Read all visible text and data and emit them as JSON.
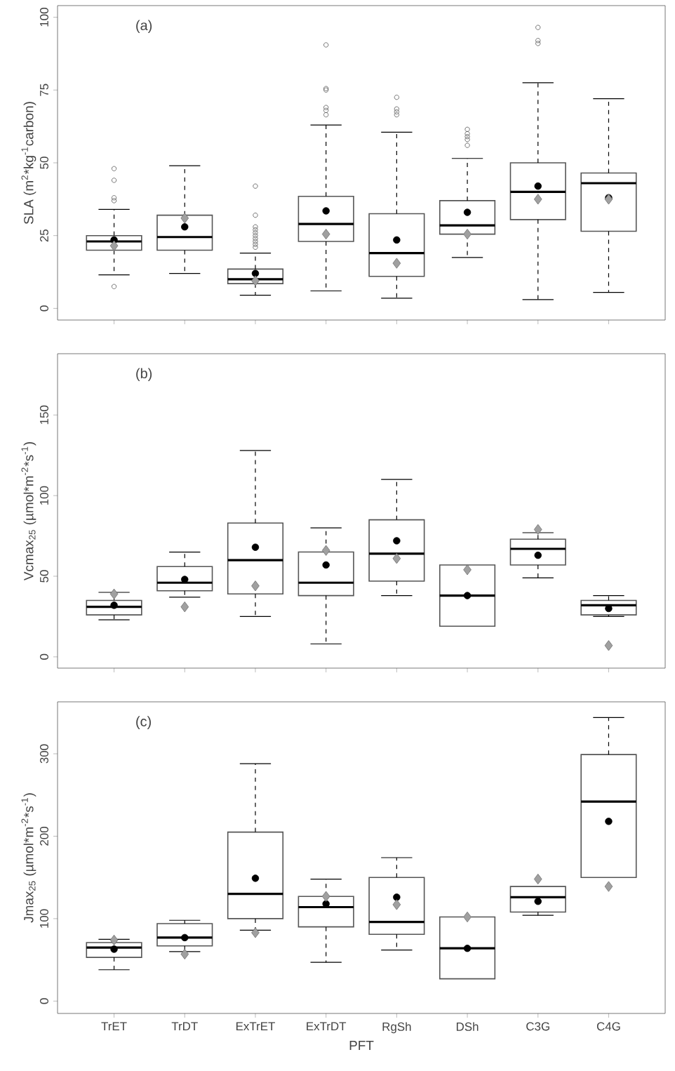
{
  "chart_data": [
    {
      "type": "box",
      "ylabel": "SLA (m$^{2}$*kg$^{-1}$carbon)",
      "annotations": [
        "(a)"
      ],
      "categories": [
        "TrET",
        "TrDT",
        "ExTrET",
        "ExTrDT",
        "RgSh",
        "DSh",
        "C3G",
        "C4G"
      ],
      "ylim": [
        -4,
        104
      ],
      "yticks": [
        0,
        25,
        50,
        75,
        100
      ],
      "tick_labels": "y",
      "grid": false,
      "boxes": [
        {
          "low": 11.5,
          "q1": 20,
          "median": 23,
          "q3": 25,
          "high": 34,
          "mean": 23.5,
          "outliers": [
            7.5,
            37,
            38,
            44,
            48
          ]
        },
        {
          "low": 12,
          "q1": 20,
          "median": 24.5,
          "q3": 32,
          "high": 49,
          "mean": 28
        },
        {
          "low": 4.5,
          "q1": 8.5,
          "median": 10,
          "q3": 13.5,
          "high": 19,
          "mean": 12,
          "outliers": [
            21,
            22,
            23,
            24,
            25,
            26,
            27,
            28,
            32,
            42
          ]
        },
        {
          "low": 6,
          "q1": 23,
          "median": 29,
          "q3": 38.5,
          "high": 63,
          "mean": 33.5,
          "outliers": [
            66.5,
            68,
            69,
            75,
            75.5,
            90.5
          ]
        },
        {
          "low": 3.5,
          "q1": 11,
          "median": 19,
          "q3": 32.5,
          "high": 60.5,
          "mean": 23.5,
          "outliers": [
            66.5,
            67.5,
            68.5,
            72.5
          ]
        },
        {
          "low": 17.5,
          "q1": 25.5,
          "median": 28.5,
          "q3": 37,
          "high": 51.5,
          "mean": 33,
          "outliers": [
            56,
            58,
            59,
            60,
            61.5
          ]
        },
        {
          "low": 3,
          "q1": 30.5,
          "median": 40,
          "q3": 50,
          "high": 77.5,
          "mean": 42,
          "outliers": [
            91,
            92,
            96.5
          ]
        },
        {
          "low": 5.5,
          "q1": 26.5,
          "median": 43,
          "q3": 46.5,
          "high": 72,
          "mean": 38
        }
      ],
      "series": [
        {
          "type": "scatter",
          "marker": "diamond",
          "color": "#a0a0a0",
          "x": [
            "TrET",
            "TrDT",
            "ExTrET",
            "ExTrDT",
            "RgSh",
            "DSh",
            "C3G",
            "C4G"
          ],
          "values": [
            21.5,
            31,
            9.5,
            25.5,
            15.5,
            25.5,
            37.5,
            37.5
          ]
        }
      ]
    },
    {
      "type": "box",
      "ylabel": "Vcmax$_{25}$ (µmol*m$^{-2}$*s$^{-1}$)",
      "annotations": [
        "(b)"
      ],
      "categories": [
        "TrET",
        "TrDT",
        "ExTrET",
        "ExTrDT",
        "RgSh",
        "DSh",
        "C3G",
        "C4G"
      ],
      "ylim": [
        -7,
        188
      ],
      "yticks": [
        0,
        50,
        100,
        150
      ],
      "tick_labels": "y",
      "grid": false,
      "boxes": [
        {
          "low": 23,
          "q1": 26,
          "median": 31,
          "q3": 35,
          "high": 40,
          "mean": 32
        },
        {
          "low": 37,
          "q1": 41,
          "median": 46,
          "q3": 56,
          "high": 65,
          "mean": 48
        },
        {
          "low": 25,
          "q1": 39,
          "median": 60,
          "q3": 83,
          "high": 128,
          "mean": 68
        },
        {
          "low": 8,
          "q1": 38,
          "median": 46,
          "q3": 65,
          "high": 80,
          "mean": 57
        },
        {
          "low": 38,
          "q1": 47,
          "median": 64,
          "q3": 85,
          "high": 110,
          "mean": 72
        },
        {
          "low": 19,
          "q1": 19,
          "median": 38,
          "q3": 57,
          "high": 57,
          "mean": 38
        },
        {
          "low": 49,
          "q1": 57,
          "median": 67,
          "q3": 73,
          "high": 77,
          "mean": 63
        },
        {
          "low": 25,
          "q1": 26,
          "median": 32,
          "q3": 35,
          "high": 38,
          "mean": 30
        }
      ],
      "series": [
        {
          "type": "scatter",
          "marker": "diamond",
          "color": "#a0a0a0",
          "x": [
            "TrET",
            "TrDT",
            "ExTrET",
            "ExTrDT",
            "RgSh",
            "DSh",
            "C3G",
            "C4G"
          ],
          "values": [
            39,
            31,
            44,
            66,
            61,
            54,
            79,
            7
          ]
        }
      ]
    },
    {
      "type": "box",
      "ylabel": "Jmax$_{25}$ (µmol*m$^{-2}$*s$^{-1}$)",
      "xlabel": "PFT",
      "annotations": [
        "(c)"
      ],
      "categories": [
        "TrET",
        "TrDT",
        "ExTrET",
        "ExTrDT",
        "RgSh",
        "DSh",
        "C3G",
        "C4G"
      ],
      "ylim": [
        -15,
        363
      ],
      "yticks": [
        0,
        100,
        200,
        300
      ],
      "grid": false,
      "boxes": [
        {
          "low": 38,
          "q1": 53,
          "median": 65,
          "q3": 71,
          "high": 75,
          "mean": 63
        },
        {
          "low": 60,
          "q1": 67,
          "median": 77,
          "q3": 94,
          "high": 98,
          "mean": 77
        },
        {
          "low": 86,
          "q1": 100,
          "median": 130,
          "q3": 205,
          "high": 288,
          "mean": 149
        },
        {
          "low": 47,
          "q1": 90,
          "median": 114,
          "q3": 127,
          "high": 148,
          "mean": 118
        },
        {
          "low": 62,
          "q1": 81,
          "median": 96,
          "q3": 150,
          "high": 174,
          "mean": 126
        },
        {
          "low": 27,
          "q1": 27,
          "median": 64,
          "q3": 102,
          "high": 102,
          "mean": 64
        },
        {
          "low": 104,
          "q1": 108,
          "median": 126,
          "q3": 139,
          "high": 139,
          "mean": 121
        },
        {
          "low": 150,
          "q1": 150,
          "median": 242,
          "q3": 299,
          "high": 344,
          "mean": 218
        }
      ],
      "series": [
        {
          "type": "scatter",
          "marker": "diamond",
          "color": "#a0a0a0",
          "x": [
            "TrET",
            "TrDT",
            "ExTrET",
            "ExTrDT",
            "RgSh",
            "DSh",
            "C3G",
            "C4G"
          ],
          "values": [
            74,
            57,
            83,
            127,
            117,
            102,
            148,
            139
          ]
        }
      ]
    }
  ]
}
